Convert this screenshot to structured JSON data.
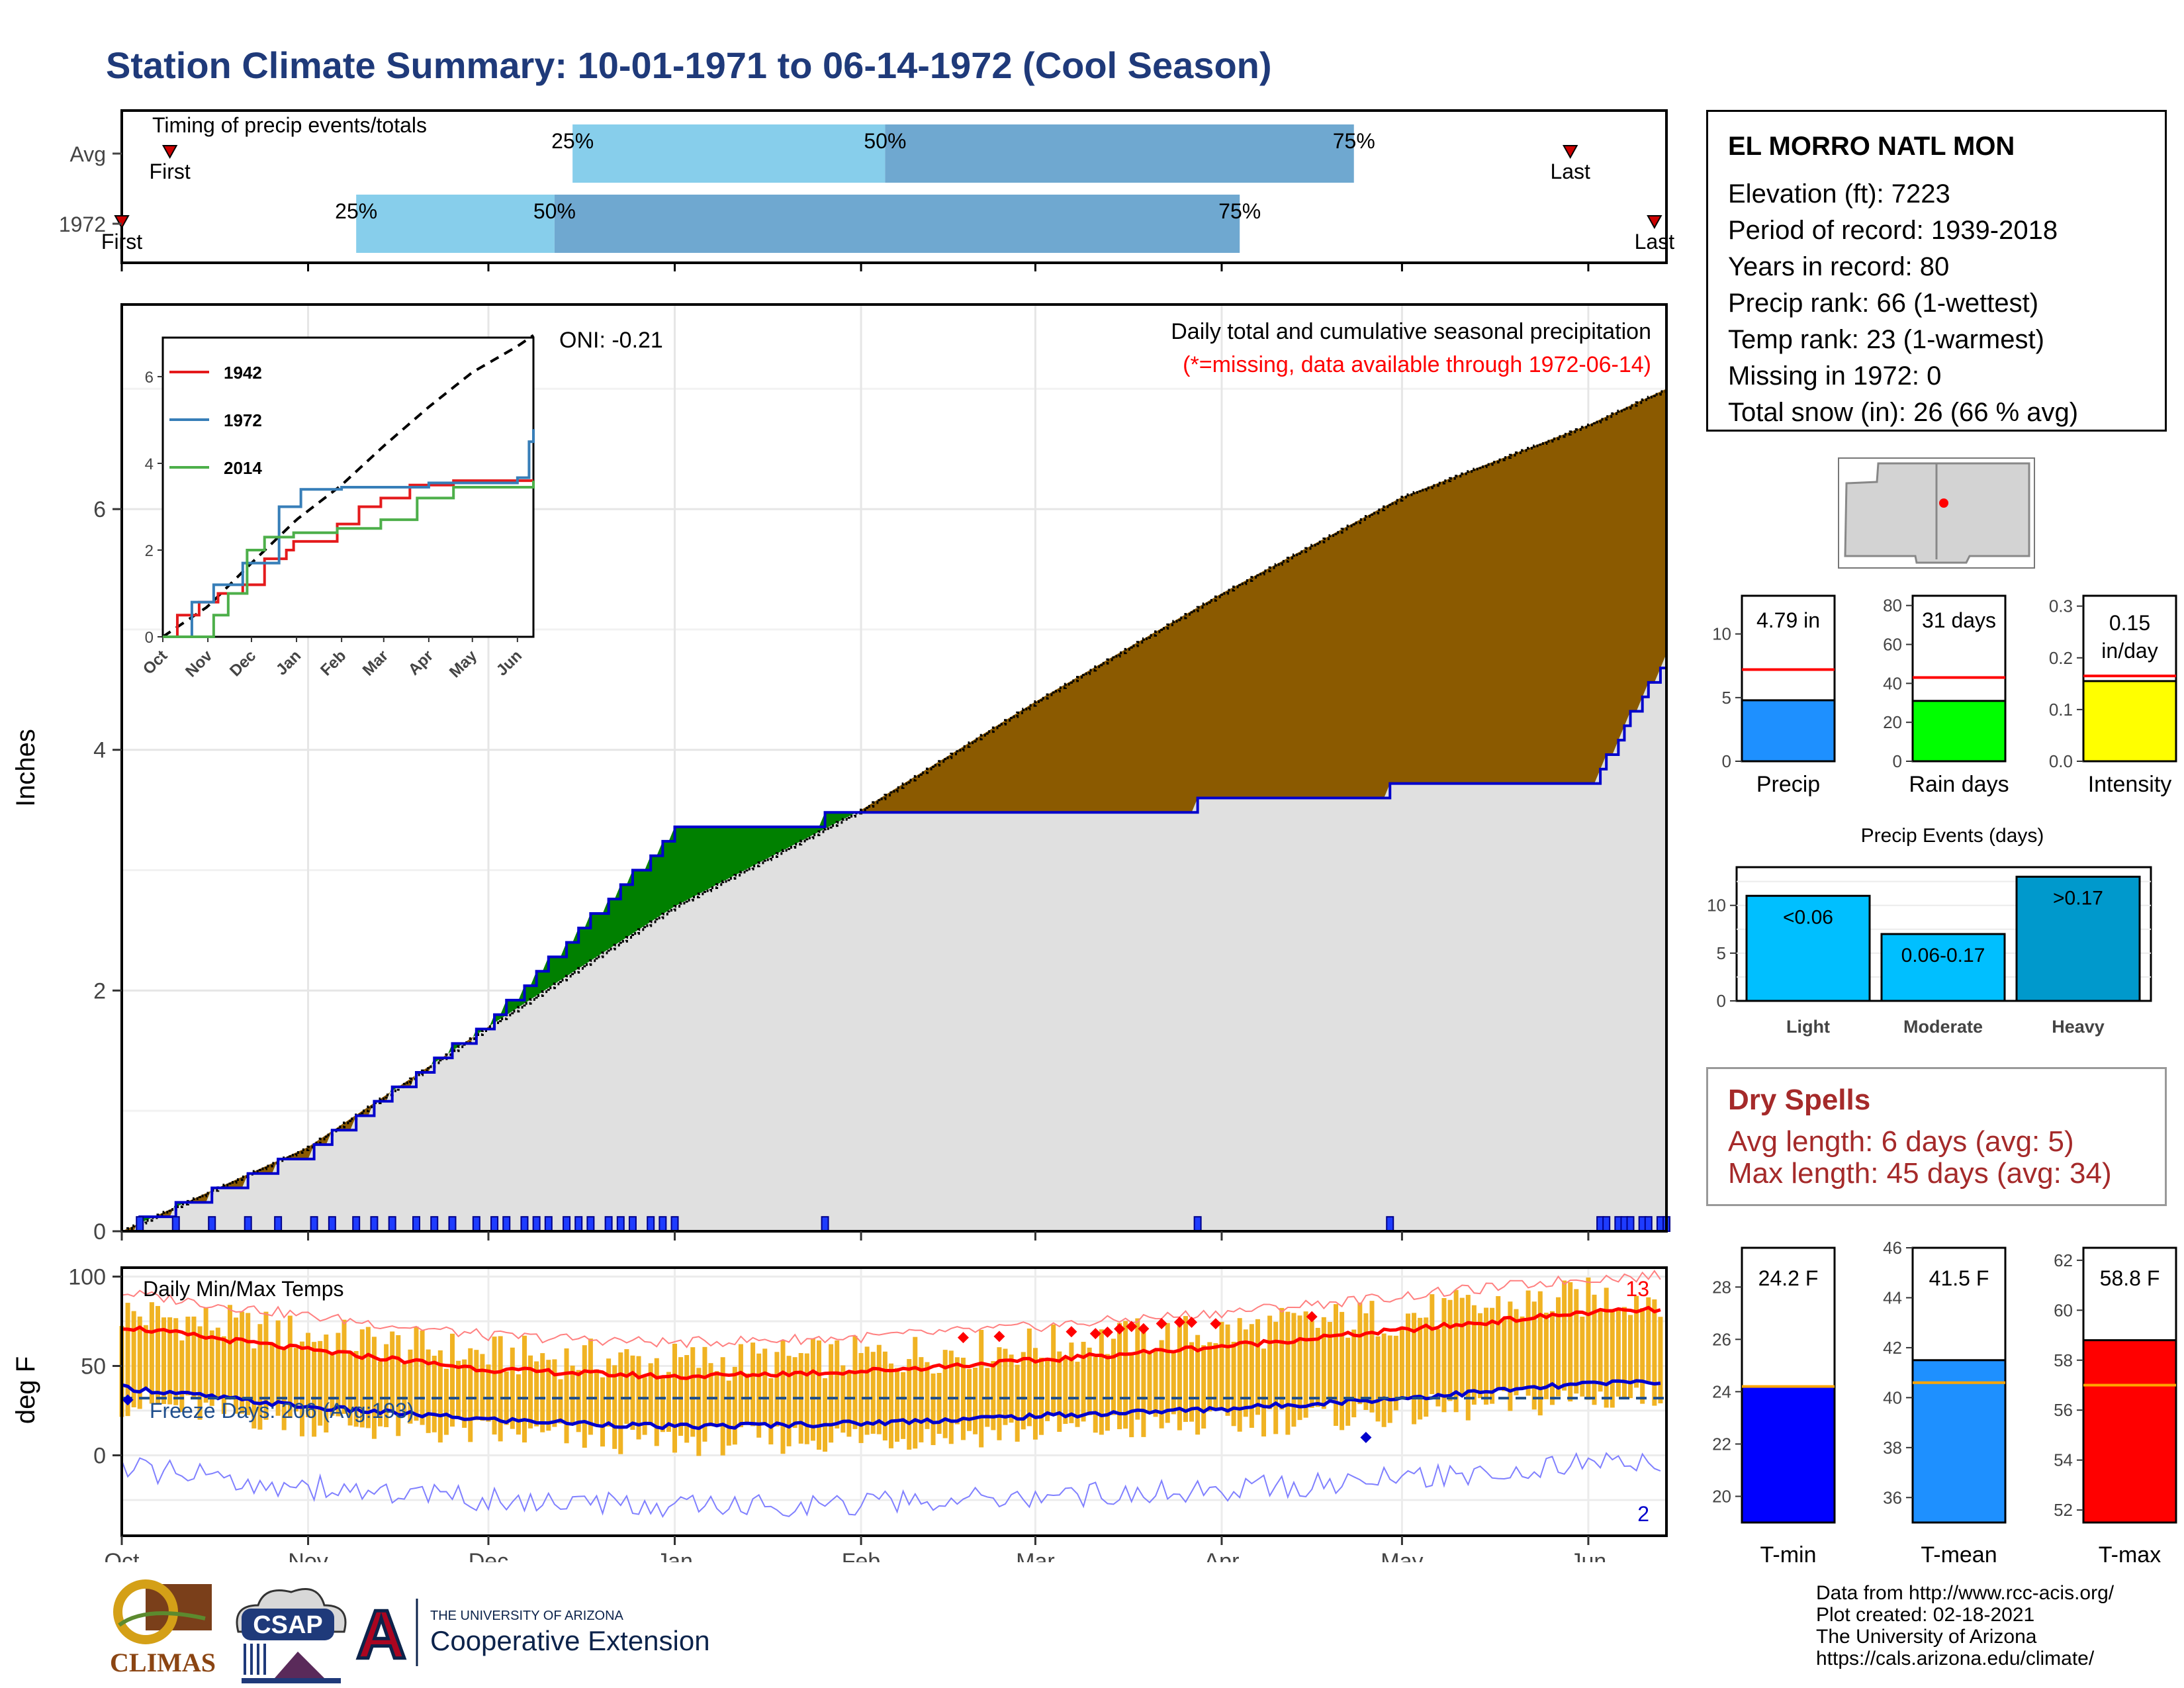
{
  "title": "Station Climate Summary: 10-01-1971 to 06-14-1972 (Cool Season)",
  "timing": {
    "label": "Timing of precip events/totals",
    "rows": [
      "Avg",
      "1972"
    ],
    "pct_labels": [
      "25%",
      "50%",
      "75%"
    ],
    "first_label": "First",
    "last_label": "Last",
    "avg": {
      "first": "10-09",
      "p25": "12-15",
      "p50": "02-05",
      "p75": "04-23",
      "last": "05-29"
    },
    "y1972": {
      "first": "10-01",
      "p25": "11-09",
      "p50": "12-12",
      "p75": "04-04",
      "last": "06-12"
    }
  },
  "main_chart": {
    "ylabel": "Inches",
    "yticks": [
      "0",
      "2",
      "4",
      "6"
    ],
    "months": [
      "Oct",
      "Nov",
      "Dec",
      "Jan",
      "Feb",
      "Mar",
      "Apr",
      "May",
      "Jun"
    ],
    "annotation_title": "Daily total and cumulative seasonal precipitation",
    "annotation_missing": "(*=missing, data available through 1972-06-14)",
    "oni": "ONI: -0.21",
    "colors": {
      "above": "#008000",
      "below": "#8b5a00",
      "normal_fill": "#e0e0e0",
      "obs_line": "#0000cc"
    }
  },
  "inset": {
    "yticks": [
      "0",
      "2",
      "4",
      "6"
    ],
    "months": [
      "Oct",
      "Nov",
      "Dec",
      "Jan",
      "Feb",
      "Mar",
      "Apr",
      "May",
      "Jun"
    ],
    "legend": [
      {
        "name": "1942",
        "color": "#e41a1c"
      },
      {
        "name": "1972",
        "color": "#377eb8"
      },
      {
        "name": "2014",
        "color": "#4daf4a"
      }
    ]
  },
  "temp_chart": {
    "ylabel": "deg F",
    "title": "Daily Min/Max Temps",
    "yticks": [
      "100",
      "50",
      "0"
    ],
    "freeze_label": "Freeze Days: 206 (Avg:193)",
    "count_high": "13",
    "count_low": "2"
  },
  "station": {
    "name": "EL MORRO NATL MON",
    "lines": [
      "Elevation (ft): 7223",
      "Period of record: 1939-2018",
      "Years in record: 80",
      "Precip rank: 66 (1-wettest)",
      "Temp rank: 23 (1-warmest)",
      "Missing in 1972: 0",
      "Total snow (in): 26 (66 % avg)"
    ]
  },
  "mini_bars": [
    {
      "label": "Precip",
      "value_text": "4.79 in",
      "value": 4.79,
      "avg": 7.2,
      "ylim": [
        0,
        13
      ],
      "yticks": [
        "0",
        "5",
        "10"
      ],
      "yvals": [
        0,
        5,
        10
      ],
      "color": "#1e90ff"
    },
    {
      "label": "Rain days",
      "value_text": "31 days",
      "value": 31,
      "avg": 43,
      "ylim": [
        0,
        85
      ],
      "yticks": [
        "0",
        "20",
        "40",
        "60",
        "80"
      ],
      "yvals": [
        0,
        20,
        40,
        60,
        80
      ],
      "color": "#00ff00"
    },
    {
      "label": "Intensity",
      "value_text": "0.15 in/day",
      "value": 0.155,
      "avg": 0.165,
      "ylim": [
        0,
        0.32
      ],
      "yticks": [
        "0.0",
        "0.1",
        "0.2",
        "0.3"
      ],
      "yvals": [
        0,
        0.1,
        0.2,
        0.3
      ],
      "color": "#ffff00"
    }
  ],
  "events": {
    "title": "Precip Events (days)",
    "categories": [
      "Light",
      "Moderate",
      "Heavy"
    ],
    "ranges": [
      "<0.06",
      "0.06-0.17",
      ">0.17"
    ],
    "values": [
      11,
      7,
      13
    ],
    "yticks": [
      "0",
      "5",
      "10"
    ],
    "yvals": [
      0,
      5,
      10
    ],
    "ylim": [
      0,
      14
    ],
    "colors": [
      "#00bfff",
      "#00bfff",
      "#0099cc"
    ]
  },
  "dry_spells": {
    "title": "Dry Spells",
    "avg_length": "Avg length: 6 days (avg: 5)",
    "max_length": "Max length: 45 days (avg: 34)"
  },
  "temp_bars": [
    {
      "label": "T-min",
      "value_text": "24.2 F",
      "value": 24.2,
      "avg": 24.2,
      "ylim": [
        19,
        29.5
      ],
      "yticks": [
        "20",
        "22",
        "24",
        "26",
        "28"
      ],
      "yvals": [
        20,
        22,
        24,
        26,
        28
      ],
      "color": "#0000ff"
    },
    {
      "label": "T-mean",
      "value_text": "41.5 F",
      "value": 41.5,
      "avg": 40.6,
      "ylim": [
        35,
        46
      ],
      "yticks": [
        "36",
        "38",
        "40",
        "42",
        "44",
        "46"
      ],
      "yvals": [
        36,
        38,
        40,
        42,
        44,
        46
      ],
      "color": "#1e90ff"
    },
    {
      "label": "T-max",
      "value_text": "58.8 F",
      "value": 58.8,
      "avg": 57.0,
      "ylim": [
        51.5,
        62.5
      ],
      "yticks": [
        "52",
        "54",
        "56",
        "58",
        "60",
        "62"
      ],
      "yvals": [
        52,
        54,
        56,
        58,
        60,
        62
      ],
      "color": "#ff0000"
    }
  ],
  "logos": {
    "climas": "CLIMAS",
    "csap": "CSAP",
    "ua_small": "THE UNIVERSITY OF ARIZONA",
    "ua_big": "Cooperative Extension",
    "ua_letter": "A"
  },
  "footer": [
    "Data from http://www.rcc-acis.org/",
    "Plot created: 02-18-2021",
    "The University of Arizona",
    "https://cals.arizona.edu/climate/"
  ],
  "chart_data": [
    {
      "type": "bar",
      "title": "Timing of precip events/totals",
      "categories": [
        "Avg",
        "1972"
      ],
      "series": [
        {
          "name": "25%",
          "values": [
            "12-15",
            "11-09"
          ]
        },
        {
          "name": "50%",
          "values": [
            "02-05",
            "12-12"
          ]
        },
        {
          "name": "75%",
          "values": [
            "04-23",
            "04-04"
          ]
        }
      ]
    },
    {
      "type": "area",
      "title": "Daily total and cumulative seasonal precipitation",
      "ylabel": "Inches",
      "ylim": [
        0,
        7.5
      ],
      "x": [
        "1971-10-01",
        "1971-11-01",
        "1971-12-01",
        "1972-01-01",
        "1972-02-01",
        "1972-03-01",
        "1972-04-01",
        "1972-05-01",
        "1972-06-01",
        "1972-06-14"
      ],
      "series": [
        {
          "name": "1972",
          "values": [
            0.0,
            0.65,
            1.72,
            3.3,
            3.45,
            3.48,
            3.55,
            3.67,
            3.67,
            4.79
          ]
        },
        {
          "name": "Avg",
          "values": [
            0.0,
            0.7,
            1.7,
            2.7,
            3.5,
            4.4,
            5.3,
            6.1,
            6.7,
            7.0
          ]
        }
      ]
    },
    {
      "type": "line",
      "ylabel": "deg F",
      "ylim": [
        -40,
        100
      ],
      "x": [
        "1971-10-01",
        "1971-11-01",
        "1971-12-01",
        "1972-01-01",
        "1972-02-01",
        "1972-03-01",
        "1972-04-01",
        "1972-05-01",
        "1972-06-01"
      ],
      "series": [
        {
          "name": "Avg max",
          "values": [
            72,
            59,
            48,
            44,
            47,
            53,
            61,
            70,
            80
          ]
        },
        {
          "name": "Avg min",
          "values": [
            38,
            27,
            20,
            16,
            18,
            22,
            26,
            32,
            40
          ]
        }
      ]
    }
  ]
}
